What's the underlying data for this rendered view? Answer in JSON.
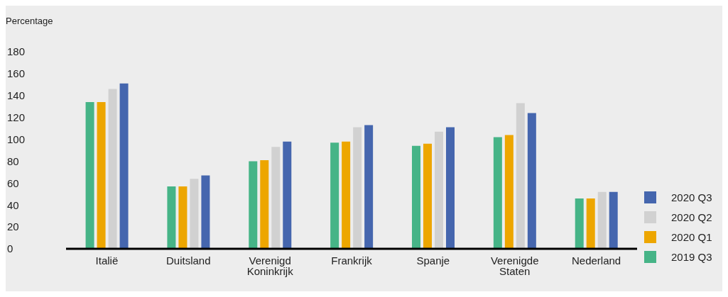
{
  "chart_data": {
    "type": "bar",
    "ylabel": "Percentage",
    "categories": [
      "Italië",
      "Duitsland",
      "Verenigd Koninkrijk",
      "Frankrijk",
      "Spanje",
      "Verenigde Staten",
      "Nederland"
    ],
    "series": [
      {
        "name": "2019 Q3",
        "color": "#46b487",
        "values": [
          134,
          57,
          80,
          97,
          94,
          102,
          46
        ]
      },
      {
        "name": "2020 Q1",
        "color": "#eda600",
        "values": [
          134,
          57,
          81,
          98,
          96,
          104,
          46
        ]
      },
      {
        "name": "2020 Q2",
        "color": "#d1d1d1",
        "values": [
          146,
          64,
          93,
          111,
          107,
          133,
          52
        ]
      },
      {
        "name": "2020 Q3",
        "color": "#4566ae",
        "values": [
          151,
          67,
          98,
          113,
          111,
          124,
          52
        ]
      }
    ],
    "ylim": [
      0,
      180
    ],
    "yticks": [
      0,
      20,
      40,
      60,
      80,
      100,
      120,
      140,
      160,
      180
    ],
    "grid": false,
    "legend": "bottom right"
  }
}
